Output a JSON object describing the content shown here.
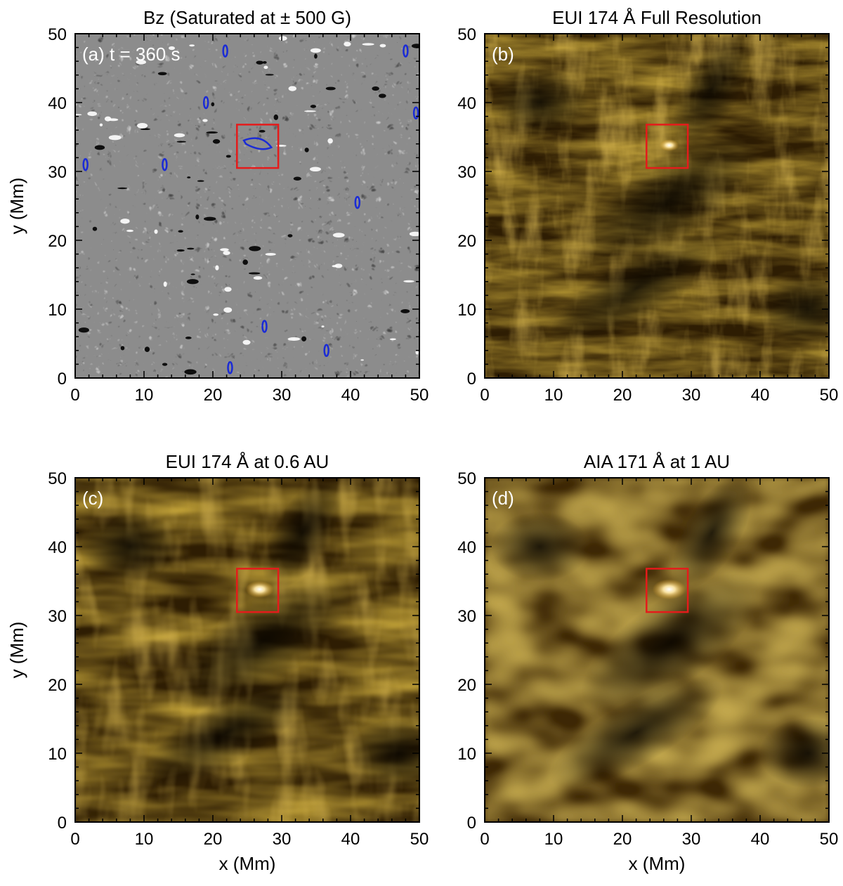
{
  "figure": {
    "panels": [
      {
        "id": "a",
        "title": "Bz (Saturated at ± 500 G)",
        "label": "(a) t = 360 s",
        "style": "magnetogram",
        "ylabel": "y (Mm)",
        "xlabel": ""
      },
      {
        "id": "b",
        "title": "EUI 174 Å Full Resolution",
        "label": "(b)",
        "style": "euv-sharp",
        "ylabel": "",
        "xlabel": ""
      },
      {
        "id": "c",
        "title": "EUI 174 Å at 0.6 AU",
        "label": "(c)",
        "style": "euv-medium",
        "ylabel": "y (Mm)",
        "xlabel": "x (Mm)"
      },
      {
        "id": "d",
        "title": "AIA 171 Å at 1 AU",
        "label": "(d)",
        "style": "euv-coarse",
        "ylabel": "",
        "xlabel": "x (Mm)"
      }
    ],
    "x_ticks": [
      "0",
      "10",
      "20",
      "30",
      "40",
      "50"
    ],
    "y_ticks": [
      "0",
      "10",
      "20",
      "30",
      "40",
      "50"
    ],
    "x_range": [
      0,
      50
    ],
    "y_range": [
      0,
      50
    ],
    "highlight_box": {
      "x0": 23.5,
      "x1": 29.5,
      "y0": 30.5,
      "y1": 36.8,
      "color": "#e51b1b"
    },
    "contour_color": "#1a2bd6",
    "colors": {
      "euv_dark": "#1a1000",
      "euv_mid": "#8a5a08",
      "euv_bright": "#ffd56a",
      "mag_gray": "#8c8c8c"
    }
  }
}
